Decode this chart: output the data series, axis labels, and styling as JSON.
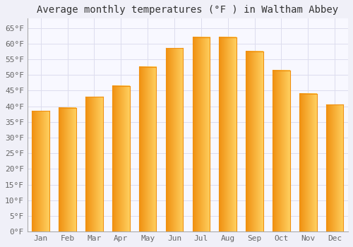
{
  "title": "Average monthly temperatures (°F ) in Waltham Abbey",
  "months": [
    "Jan",
    "Feb",
    "Mar",
    "Apr",
    "May",
    "Jun",
    "Jul",
    "Aug",
    "Sep",
    "Oct",
    "Nov",
    "Dec"
  ],
  "values": [
    38.5,
    39.5,
    43.0,
    46.5,
    52.5,
    58.5,
    62.0,
    62.0,
    57.5,
    51.5,
    44.0,
    40.5
  ],
  "bar_color_center": "#FFD060",
  "bar_color_edge": "#F09010",
  "background_color": "#F0F0F8",
  "plot_bg_color": "#F8F8FF",
  "grid_color": "#DDDDEE",
  "ylim": [
    0,
    68
  ],
  "yticks": [
    0,
    5,
    10,
    15,
    20,
    25,
    30,
    35,
    40,
    45,
    50,
    55,
    60,
    65
  ],
  "ytick_labels": [
    "0°F",
    "5°F",
    "10°F",
    "15°F",
    "20°F",
    "25°F",
    "30°F",
    "35°F",
    "40°F",
    "45°F",
    "50°F",
    "55°F",
    "60°F",
    "65°F"
  ],
  "title_fontsize": 10,
  "tick_fontsize": 8,
  "font_family": "monospace",
  "bar_width": 0.65
}
